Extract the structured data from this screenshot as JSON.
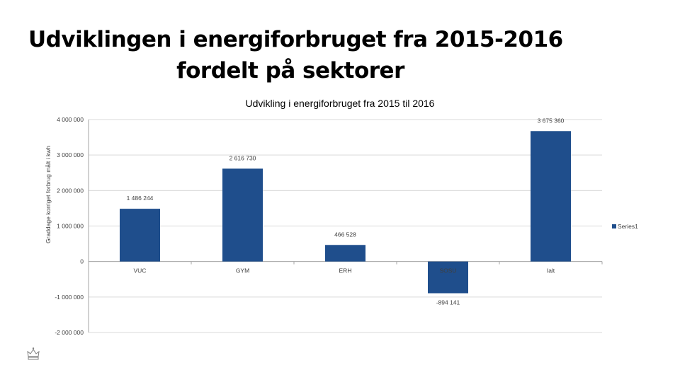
{
  "slide": {
    "title_line1": "Udviklingen i energiforbruget fra 2015-2016",
    "title_line2": "fordelt på sektorer"
  },
  "colors": {
    "bar": "#1F4E8C",
    "grid": "#D9D9D9",
    "axis": "#A6A6A6"
  },
  "chart_data": {
    "type": "bar",
    "title": "Udvikling i energiforbruget fra 2015 til 2016",
    "ylabel": "Graddage korriget forbrug målt i kwh",
    "xlabel": "",
    "categories": [
      "VUC",
      "GYM",
      "ERH",
      "SOSU",
      "Ialt"
    ],
    "series": [
      {
        "name": "Series1",
        "values": [
          1486244,
          2616730,
          466528,
          -894141,
          3675360
        ]
      }
    ],
    "data_labels": [
      "1 486 244",
      "2 616 730",
      "466 528",
      "-894 141",
      "3 675 360"
    ],
    "ylim": [
      -2000000,
      4000000
    ],
    "yticks": [
      4000000,
      3000000,
      2000000,
      1000000,
      0,
      -1000000,
      -2000000
    ],
    "ytick_labels": [
      "4 000 000",
      "3 000 000",
      "2 000 000",
      "1 000 000",
      "0",
      "-1 000 000",
      "-2 000 000"
    ],
    "legend": "right",
    "grid": true
  }
}
